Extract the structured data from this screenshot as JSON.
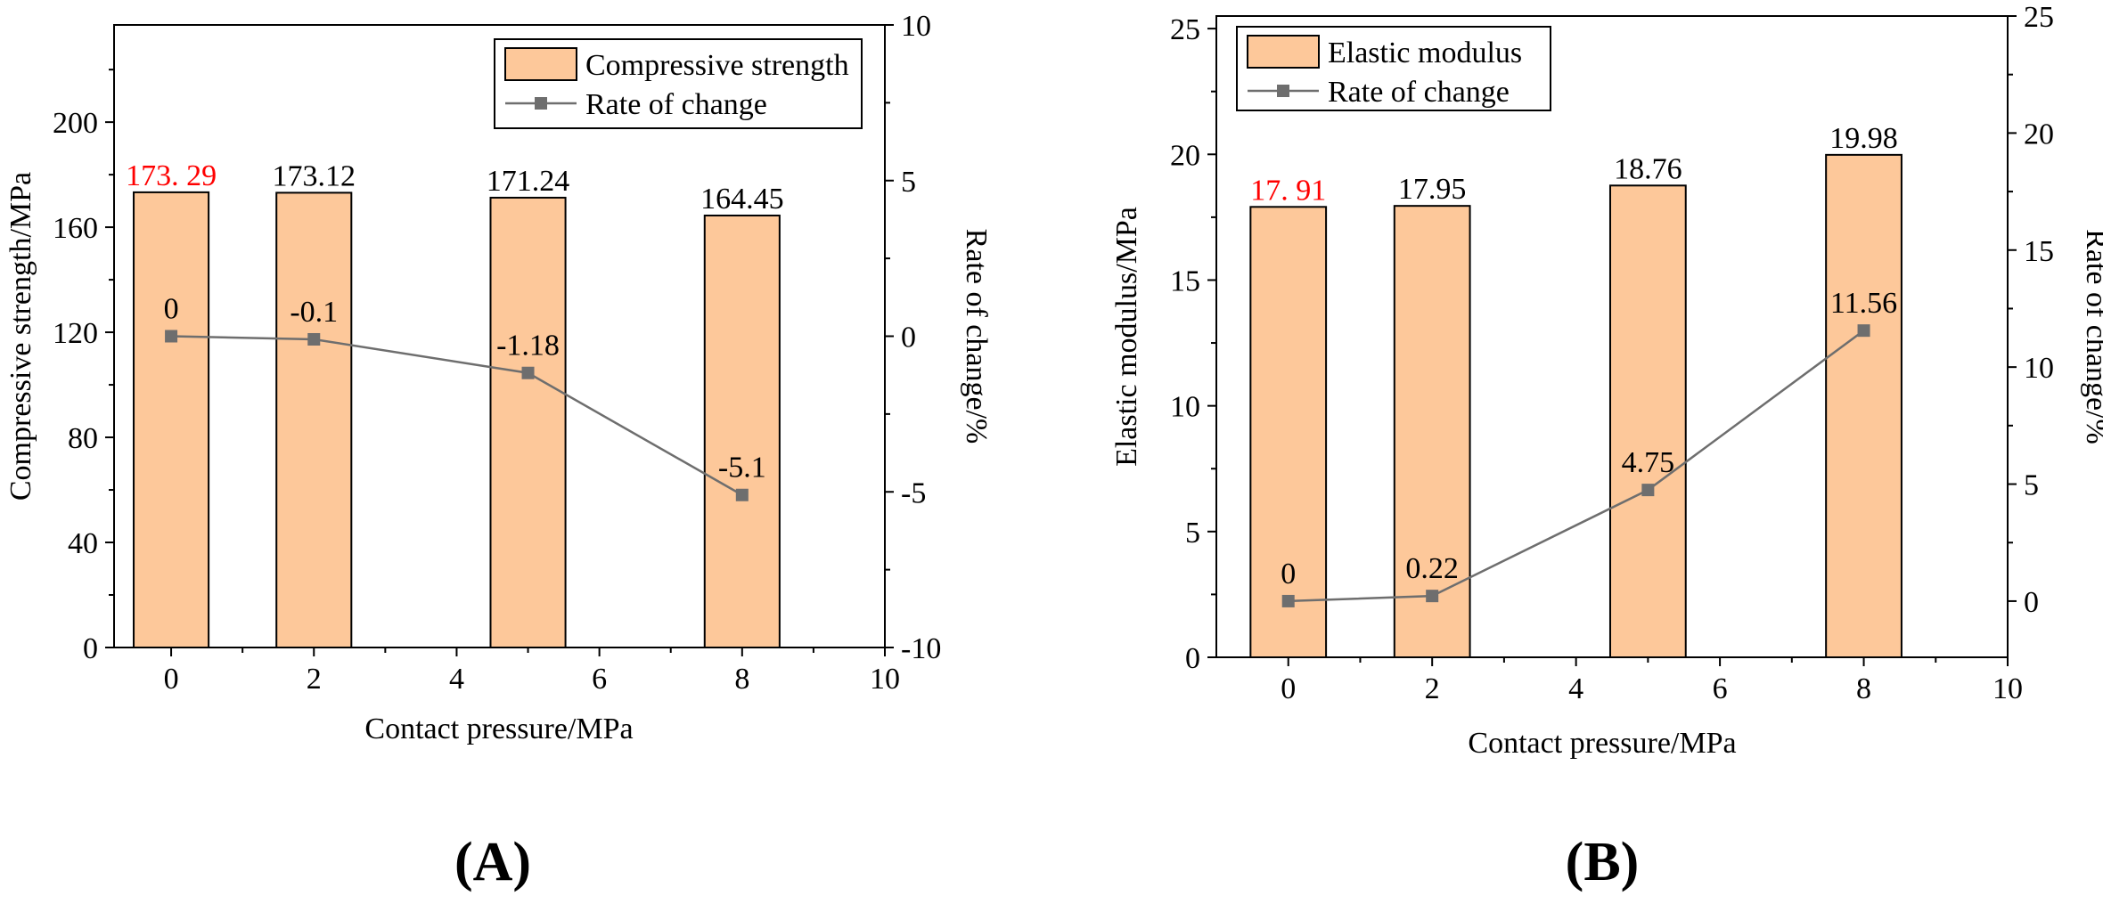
{
  "chart_data": [
    {
      "type": "bar",
      "panel_label": "(A)",
      "xlabel": "Contact pressure/MPa",
      "ylabel": "Compressive strength/MPa",
      "y2label": "Rate of change/%",
      "xlim": [
        -0.8,
        10
      ],
      "ylim": [
        0,
        237
      ],
      "y2lim": [
        -10,
        10
      ],
      "xticks": [
        0,
        2,
        4,
        6,
        8,
        10
      ],
      "yticks": [
        0,
        40,
        80,
        120,
        160,
        200
      ],
      "y2ticks": [
        -10,
        -5,
        0,
        5,
        10
      ],
      "bar_width": 1.05,
      "legend_position": "top-right",
      "highlight_color": "#ff0000",
      "bar_color": "#fdc89a",
      "line_color": "#6e6e6e",
      "bars": {
        "name": "Compressive strength",
        "x": [
          0,
          2,
          5,
          8
        ],
        "values": [
          173.29,
          173.12,
          171.24,
          164.45
        ],
        "labels": [
          "173. 29",
          "173.12",
          "171.24",
          "164.45"
        ]
      },
      "line": {
        "name": "Rate of change",
        "x": [
          0,
          2,
          5,
          8
        ],
        "values": [
          0,
          -0.1,
          -1.18,
          -5.1
        ],
        "labels": [
          "0",
          "-0.1",
          "-1.18",
          "-5.1"
        ]
      }
    },
    {
      "type": "bar",
      "panel_label": "(B)",
      "xlabel": "Contact pressure/MPa",
      "ylabel": "Elastic modulus/MPa",
      "y2label": "Rate of change/%",
      "xlim": [
        -1,
        10
      ],
      "ylim": [
        0,
        25.5
      ],
      "y2lim": [
        -2.4,
        25
      ],
      "xticks": [
        0,
        2,
        4,
        6,
        8,
        10
      ],
      "yticks": [
        0,
        5,
        10,
        15,
        20,
        25
      ],
      "y2ticks": [
        0,
        5,
        10,
        15,
        20,
        25
      ],
      "bar_width": 1.05,
      "legend_position": "top-left",
      "highlight_color": "#ff0000",
      "bar_color": "#fdc89a",
      "line_color": "#6e6e6e",
      "bars": {
        "name": "Elastic modulus",
        "x": [
          0,
          2,
          5,
          8
        ],
        "values": [
          17.91,
          17.95,
          18.76,
          19.98
        ],
        "labels": [
          "17. 91",
          "17.95",
          "18.76",
          "19.98"
        ]
      },
      "line": {
        "name": "Rate of change",
        "x": [
          0,
          2,
          5,
          8
        ],
        "values": [
          0,
          0.22,
          4.75,
          11.56
        ],
        "labels": [
          "0",
          "0.22",
          "4.75",
          "11.56"
        ]
      }
    }
  ]
}
